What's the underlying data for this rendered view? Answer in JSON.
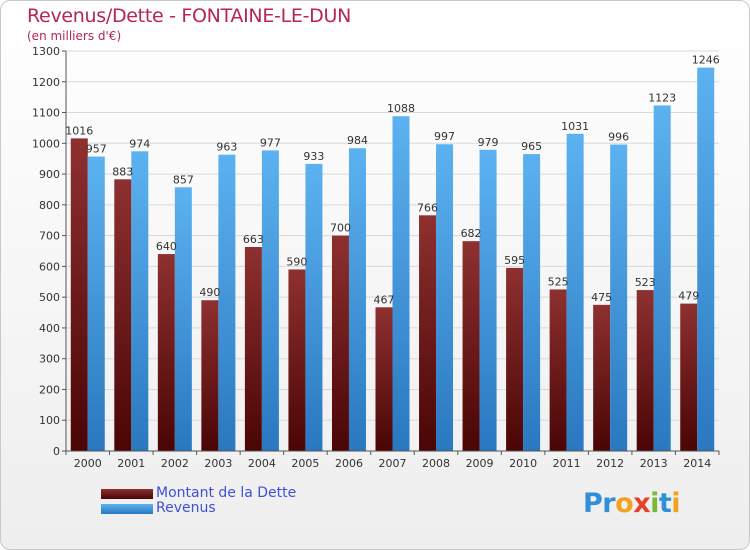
{
  "header": {
    "title": "Revenus/Dette - FONTAINE-LE-DUN",
    "subtitle": "(en milliers d'€)"
  },
  "chart_data": {
    "type": "bar",
    "categories": [
      "2000",
      "2001",
      "2002",
      "2003",
      "2004",
      "2005",
      "2006",
      "2007",
      "2008",
      "2009",
      "2010",
      "2011",
      "2012",
      "2013",
      "2014"
    ],
    "series": [
      {
        "name": "Montant de la Dette",
        "color": "#7a1e1e",
        "values": [
          1016,
          883,
          640,
          490,
          663,
          590,
          700,
          467,
          766,
          682,
          595,
          525,
          475,
          523,
          479
        ]
      },
      {
        "name": "Revenus",
        "color": "#3a9ae0",
        "values": [
          957,
          974,
          857,
          963,
          977,
          933,
          984,
          1088,
          997,
          979,
          965,
          1031,
          996,
          1123,
          1246
        ]
      }
    ],
    "ylim": [
      0,
      1300
    ],
    "yticks": [
      0,
      100,
      200,
      300,
      400,
      500,
      600,
      700,
      800,
      900,
      1000,
      1100,
      1200,
      1300
    ],
    "grid": true,
    "legend_placement": "bottom-left",
    "title": "Revenus/Dette - FONTAINE-LE-DUN",
    "ylabel": "(en milliers d'€)",
    "xlabel": ""
  },
  "legend": {
    "items": [
      {
        "label": "Montant de la Dette"
      },
      {
        "label": "Revenus"
      }
    ]
  },
  "logo": {
    "letters": [
      {
        "ch": "P",
        "color": "#2f8fd8"
      },
      {
        "ch": "r",
        "color": "#2f8fd8"
      },
      {
        "ch": "o",
        "color": "#f4a21d"
      },
      {
        "ch": "x",
        "color": "#e8402a"
      },
      {
        "ch": "i",
        "color": "#7ab83a"
      },
      {
        "ch": "t",
        "color": "#2f8fd8"
      },
      {
        "ch": "i",
        "color": "#f4a21d"
      }
    ]
  }
}
